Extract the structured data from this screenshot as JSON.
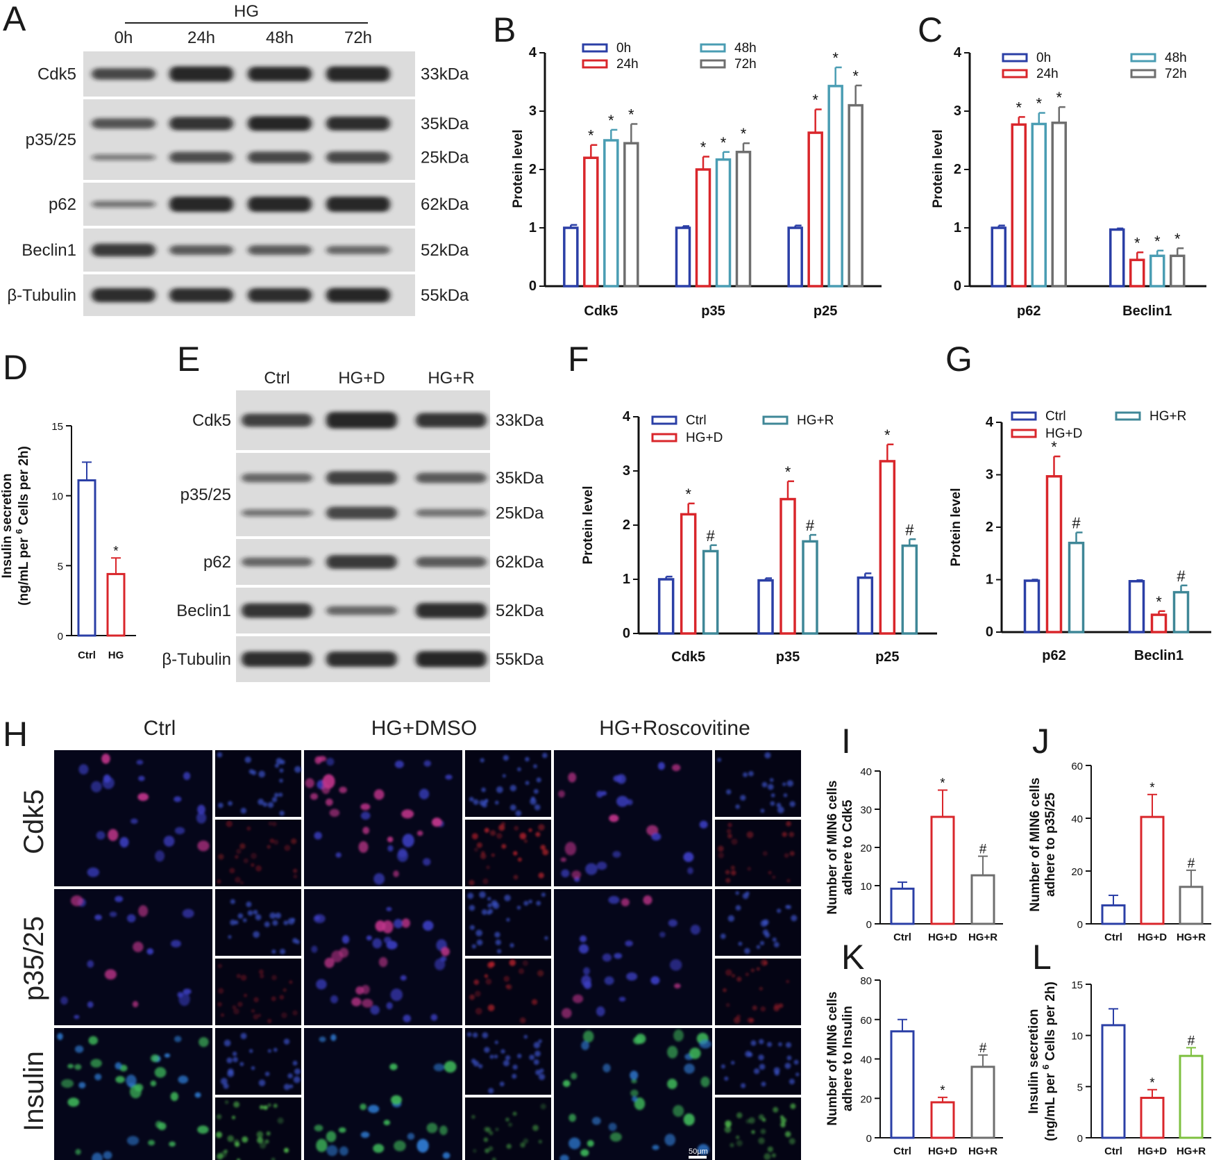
{
  "panels": {
    "A": {
      "letter": "A",
      "group_label": "HG",
      "columns": [
        "0h",
        "24h",
        "48h",
        "72h"
      ],
      "rows": [
        {
          "label": "Cdk5",
          "kda": [
            "33kDa"
          ]
        },
        {
          "label": "p35/25",
          "kda": [
            "35kDa",
            "25kDa"
          ]
        },
        {
          "label": "p62",
          "kda": [
            "62kDa"
          ]
        },
        {
          "label": "Beclin1",
          "kda": [
            "52kDa"
          ]
        },
        {
          "label": "β-Tubulin",
          "kda": [
            "55kDa"
          ]
        }
      ]
    },
    "E": {
      "letter": "E",
      "columns": [
        "Ctrl",
        "HG+D",
        "HG+R"
      ],
      "rows": [
        {
          "label": "Cdk5",
          "kda": [
            "33kDa"
          ]
        },
        {
          "label": "p35/25",
          "kda": [
            "35kDa",
            "25kDa"
          ]
        },
        {
          "label": "p62",
          "kda": [
            "62kDa"
          ]
        },
        {
          "label": "Beclin1",
          "kda": [
            "52kDa"
          ]
        },
        {
          "label": "β-Tubulin",
          "kda": [
            "55kDa"
          ]
        }
      ]
    },
    "H": {
      "letter": "H",
      "column_titles": [
        "Ctrl",
        "HG+DMSO",
        "HG+Roscovitine"
      ],
      "row_labels": [
        "Cdk5",
        "p35/25",
        "Insulin"
      ],
      "scale_bar": "50μm"
    }
  },
  "chart_data": [
    {
      "id": "B",
      "letter": "B",
      "type": "bar",
      "categories": [
        "Cdk5",
        "p35",
        "p25"
      ],
      "ylabel": "Protein level",
      "ylim": [
        0,
        4
      ],
      "yticks": [
        0,
        1,
        2,
        3,
        4
      ],
      "legend_placement": "top",
      "series": [
        {
          "name": "0h",
          "color": "#2b3fa6",
          "values": [
            1.0,
            1.0,
            1.0
          ],
          "errors": [
            0.05,
            0.03,
            0.04
          ],
          "marks": [
            "",
            "",
            ""
          ]
        },
        {
          "name": "24h",
          "color": "#d9262b",
          "values": [
            2.2,
            2.0,
            2.63
          ],
          "errors": [
            0.22,
            0.22,
            0.4
          ],
          "marks": [
            "*",
            "*",
            "*"
          ]
        },
        {
          "name": "48h",
          "color": "#4a9db3",
          "values": [
            2.5,
            2.17,
            3.43
          ],
          "errors": [
            0.18,
            0.13,
            0.32
          ],
          "marks": [
            "*",
            "*",
            "*"
          ]
        },
        {
          "name": "72h",
          "color": "#6e6e6e",
          "values": [
            2.45,
            2.3,
            3.1
          ],
          "errors": [
            0.33,
            0.15,
            0.34
          ],
          "marks": [
            "*",
            "*",
            "*"
          ]
        }
      ]
    },
    {
      "id": "C",
      "letter": "C",
      "type": "bar",
      "categories": [
        "p62",
        "Beclin1"
      ],
      "ylabel": "Protein level",
      "ylim": [
        0,
        4
      ],
      "yticks": [
        0,
        1,
        2,
        3,
        4
      ],
      "legend_placement": "top",
      "series": [
        {
          "name": "0h",
          "color": "#2b3fa6",
          "values": [
            1.0,
            0.97
          ],
          "errors": [
            0.04,
            0.02
          ],
          "marks": [
            "",
            ""
          ]
        },
        {
          "name": "24h",
          "color": "#d9262b",
          "values": [
            2.77,
            0.45
          ],
          "errors": [
            0.13,
            0.13
          ],
          "marks": [
            "*",
            "*"
          ]
        },
        {
          "name": "48h",
          "color": "#4a9db3",
          "values": [
            2.78,
            0.52
          ],
          "errors": [
            0.19,
            0.09
          ],
          "marks": [
            "*",
            "*"
          ]
        },
        {
          "name": "72h",
          "color": "#6e6e6e",
          "values": [
            2.8,
            0.52
          ],
          "errors": [
            0.27,
            0.13
          ],
          "marks": [
            "*",
            "*"
          ]
        }
      ]
    },
    {
      "id": "D",
      "letter": "D",
      "type": "bar",
      "categories": [
        "Ctrl",
        "HG"
      ],
      "ylabel": "Insulin secretion (ng/mL per 10^6 Cells per 2h)",
      "ylim": [
        0,
        15
      ],
      "yticks": [
        0,
        5,
        10,
        15
      ],
      "series": [
        {
          "name": "",
          "colors": [
            "#2b3fa6",
            "#d9262b"
          ],
          "values": [
            11.1,
            4.4
          ],
          "errors": [
            1.3,
            1.15
          ],
          "marks": [
            "",
            "*"
          ]
        }
      ]
    },
    {
      "id": "F",
      "letter": "F",
      "type": "bar",
      "categories": [
        "Cdk5",
        "p35",
        "p25"
      ],
      "ylabel": "Protein level",
      "ylim": [
        0,
        4
      ],
      "yticks": [
        0,
        1,
        2,
        3,
        4
      ],
      "legend_placement": "top",
      "series": [
        {
          "name": "Ctrl",
          "color": "#2b3fa6",
          "values": [
            1.0,
            0.98,
            1.03
          ],
          "errors": [
            0.05,
            0.04,
            0.08
          ],
          "marks": [
            "",
            "",
            ""
          ]
        },
        {
          "name": "HG+D",
          "color": "#d9262b",
          "values": [
            2.2,
            2.48,
            3.18
          ],
          "errors": [
            0.2,
            0.33,
            0.31
          ],
          "marks": [
            "*",
            "*",
            "*"
          ]
        },
        {
          "name": "HG+R",
          "color": "#3f8797",
          "values": [
            1.52,
            1.7,
            1.62
          ],
          "errors": [
            0.11,
            0.12,
            0.12
          ],
          "marks": [
            "#",
            "#",
            "#"
          ]
        }
      ]
    },
    {
      "id": "G",
      "letter": "G",
      "type": "bar",
      "categories": [
        "p62",
        "Beclin1"
      ],
      "ylabel": "Protein level",
      "ylim": [
        0,
        4
      ],
      "yticks": [
        0,
        1,
        2,
        3,
        4
      ],
      "legend_placement": "top",
      "series": [
        {
          "name": "Ctrl",
          "color": "#2b3fa6",
          "values": [
            0.98,
            0.97
          ],
          "errors": [
            0.02,
            0.02
          ],
          "marks": [
            "",
            ""
          ]
        },
        {
          "name": "HG+D",
          "color": "#d9262b",
          "values": [
            2.97,
            0.33
          ],
          "errors": [
            0.38,
            0.07
          ],
          "marks": [
            "*",
            "*"
          ]
        },
        {
          "name": "HG+R",
          "color": "#3f8797",
          "values": [
            1.7,
            0.76
          ],
          "errors": [
            0.2,
            0.13
          ],
          "marks": [
            "#",
            "#"
          ]
        }
      ]
    },
    {
      "id": "I",
      "letter": "I",
      "type": "bar",
      "categories": [
        "Ctrl",
        "HG+D",
        "HG+R"
      ],
      "ylabel": "Number of MIN6 cells adhere to Cdk5",
      "ylim": [
        0,
        40
      ],
      "yticks": [
        0,
        10,
        20,
        30,
        40
      ],
      "series": [
        {
          "name": "",
          "colors": [
            "#2b3fa6",
            "#d9262b",
            "#6e6e6e"
          ],
          "values": [
            9.2,
            28.0,
            12.7
          ],
          "errors": [
            1.7,
            7.0,
            5.0
          ],
          "marks": [
            "",
            "*",
            "#"
          ]
        }
      ]
    },
    {
      "id": "J",
      "letter": "J",
      "type": "bar",
      "categories": [
        "Ctrl",
        "HG+D",
        "HG+R"
      ],
      "ylabel": "Number of MIN6 cells adhere to p35/25",
      "ylim": [
        0,
        60
      ],
      "yticks": [
        0,
        20,
        40,
        60
      ],
      "series": [
        {
          "name": "",
          "colors": [
            "#2b3fa6",
            "#d9262b",
            "#6e6e6e"
          ],
          "values": [
            7.0,
            40.5,
            14.0
          ],
          "errors": [
            3.8,
            8.5,
            6.3
          ],
          "marks": [
            "",
            "*",
            "#"
          ]
        }
      ]
    },
    {
      "id": "K",
      "letter": "K",
      "type": "bar",
      "categories": [
        "Ctrl",
        "HG+D",
        "HG+R"
      ],
      "ylabel": "Number of MIN6 cells adhere to Insulin",
      "ylim": [
        0,
        80
      ],
      "yticks": [
        0,
        20,
        40,
        60,
        80
      ],
      "series": [
        {
          "name": "",
          "colors": [
            "#2b3fa6",
            "#d9262b",
            "#6e6e6e"
          ],
          "values": [
            54.0,
            18.0,
            36.0
          ],
          "errors": [
            6.0,
            2.5,
            6.0
          ],
          "marks": [
            "",
            "*",
            "#"
          ]
        }
      ]
    },
    {
      "id": "L",
      "letter": "L",
      "type": "bar",
      "categories": [
        "Ctrl",
        "HG+D",
        "HG+R"
      ],
      "ylabel": "Insulin secretion (ng/mL per 10^6 Cells per 2h)",
      "ylim": [
        0,
        15
      ],
      "yticks": [
        0,
        5,
        10,
        15
      ],
      "series": [
        {
          "name": "",
          "colors": [
            "#2b3fa6",
            "#d9262b",
            "#7ec040"
          ],
          "values": [
            11.0,
            3.9,
            8.0
          ],
          "errors": [
            1.6,
            0.8,
            0.8
          ],
          "marks": [
            "",
            "*",
            "#"
          ]
        }
      ]
    }
  ]
}
